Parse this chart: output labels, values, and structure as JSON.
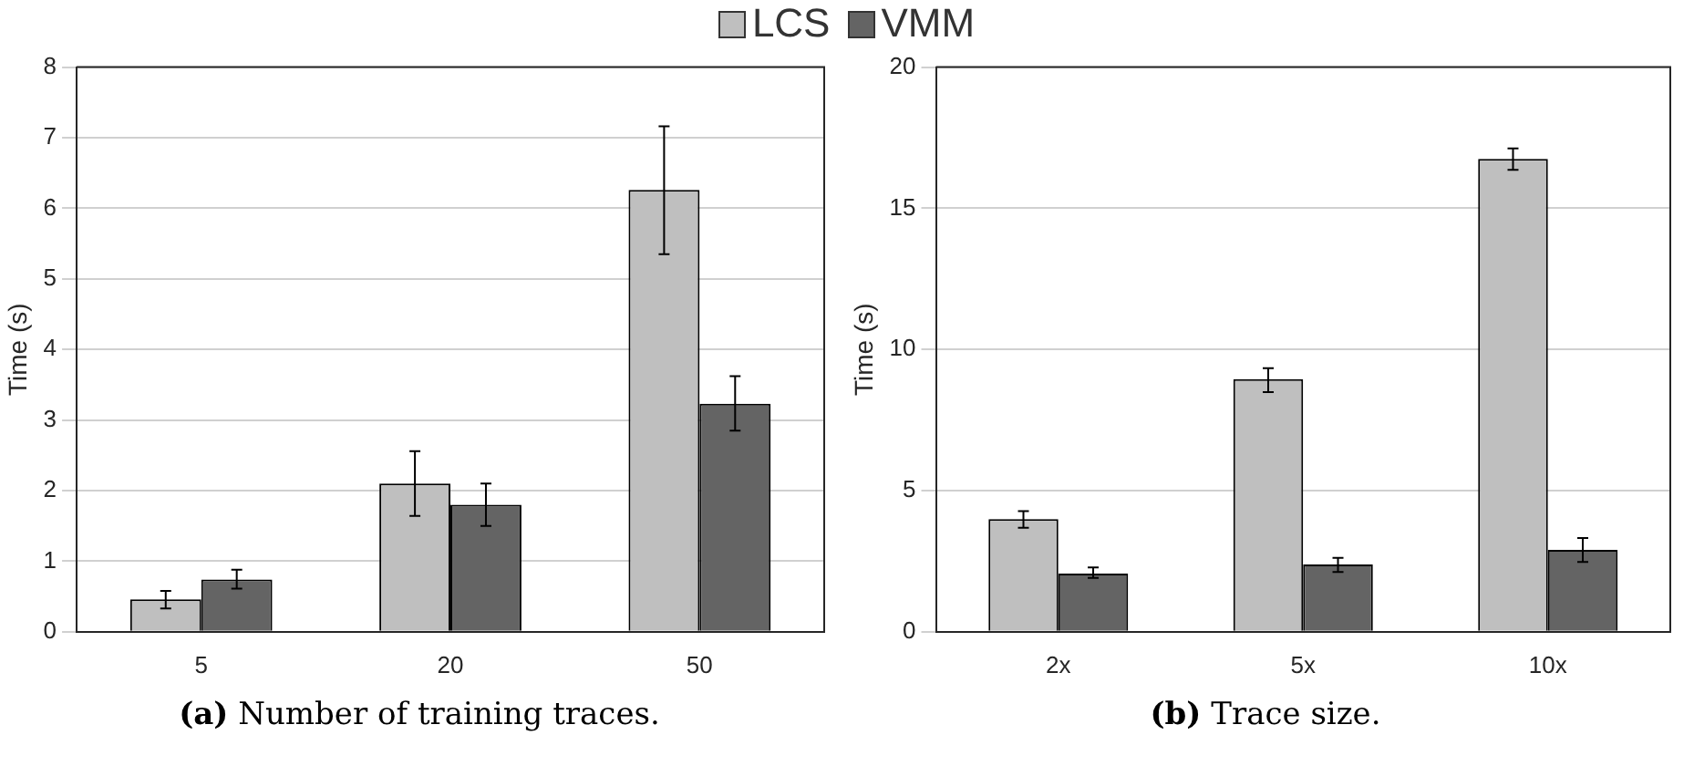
{
  "chart_data": [
    {
      "type": "bar",
      "categories": [
        "5",
        "20",
        "50"
      ],
      "ylabel": "Time (s)",
      "ylim": [
        0,
        8
      ],
      "yticks": [
        0,
        1,
        2,
        3,
        4,
        5,
        6,
        7,
        8
      ],
      "grid": "y",
      "legend": "top",
      "annotations": [
        "(a) Number of training traces."
      ],
      "series": [
        {
          "name": "LCS",
          "color": "#bfbfbf",
          "values": [
            0.46,
            2.1,
            6.26
          ],
          "errors": [
            [
              0.33,
              0.58
            ],
            [
              1.64,
              2.56
            ],
            [
              5.35,
              7.16
            ]
          ]
        },
        {
          "name": "VMM",
          "color": "#646464",
          "values": [
            0.74,
            1.8,
            3.23
          ],
          "errors": [
            [
              0.61,
              0.88
            ],
            [
              1.5,
              2.1
            ],
            [
              2.85,
              3.62
            ]
          ]
        }
      ]
    },
    {
      "type": "bar",
      "categories": [
        "2x",
        "5x",
        "10x"
      ],
      "ylabel": "Time (s)",
      "ylim": [
        0,
        20
      ],
      "yticks": [
        0,
        5,
        10,
        15,
        20
      ],
      "grid": "y",
      "annotations": [
        "(b) Trace size."
      ],
      "series": [
        {
          "color": "#bfbfbf",
          "values": [
            3.99,
            8.95,
            16.75
          ],
          "errors": [
            [
              3.68,
              4.27
            ],
            [
              8.49,
              9.34
            ],
            [
              16.36,
              17.12
            ]
          ]
        },
        {
          "color": "#646464",
          "values": [
            2.06,
            2.38,
            2.9
          ],
          "errors": [
            [
              1.91,
              2.28
            ],
            [
              2.12,
              2.62
            ],
            [
              2.47,
              3.32
            ]
          ]
        }
      ]
    }
  ]
}
